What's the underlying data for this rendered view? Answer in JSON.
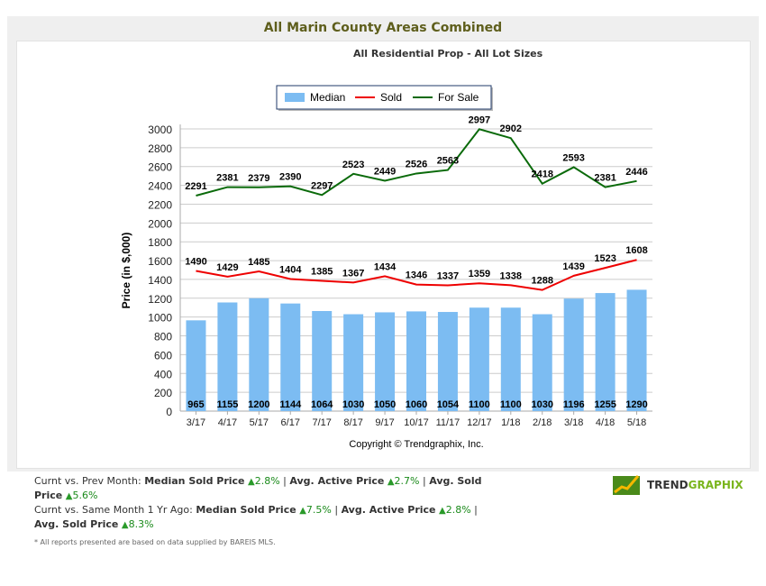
{
  "header": {
    "title": "All Marin County Areas Combined",
    "subtitle": "All Residential Prop - All Lot Sizes"
  },
  "chart_data": {
    "type": "bar+line",
    "categories": [
      "3/17",
      "4/17",
      "5/17",
      "6/17",
      "7/17",
      "8/17",
      "9/17",
      "10/17",
      "11/17",
      "12/17",
      "1/18",
      "2/18",
      "3/18",
      "4/18",
      "5/18"
    ],
    "series": [
      {
        "name": "Median",
        "type": "bar",
        "color": "#7cbcf2",
        "values": [
          965,
          1155,
          1200,
          1144,
          1064,
          1030,
          1050,
          1060,
          1054,
          1100,
          1100,
          1030,
          1196,
          1255,
          1290
        ]
      },
      {
        "name": "Sold",
        "type": "line",
        "color": "#ee0000",
        "values": [
          1490,
          1429,
          1485,
          1404,
          1385,
          1367,
          1434,
          1346,
          1337,
          1359,
          1338,
          1288,
          1439,
          1523,
          1608
        ]
      },
      {
        "name": "For Sale",
        "type": "line",
        "color": "#0a6a0a",
        "values": [
          2291,
          2381,
          2379,
          2390,
          2297,
          2523,
          2449,
          2526,
          2563,
          2997,
          2902,
          2418,
          2593,
          2381,
          2446
        ]
      }
    ],
    "ylabel": "Price (in $,000)",
    "xlabel": "Copyright © Trendgraphix, Inc.",
    "ylim": [
      0,
      3000
    ],
    "yticks": [
      0,
      200,
      400,
      600,
      800,
      1000,
      1200,
      1400,
      1600,
      1800,
      2000,
      2200,
      2400,
      2600,
      2800,
      3000
    ],
    "grid": true,
    "legend": "top-center"
  },
  "stats": {
    "prev_label": "Curnt vs. Prev Month:",
    "year_label": "Curnt vs. Same Month 1 Yr Ago:",
    "median_label": "Median Sold Price",
    "active_label": "Avg. Active Price",
    "sold_label": "Avg. Sold Price",
    "prev": {
      "median": "2.8%",
      "active": "2.7%",
      "sold": "5.6%"
    },
    "year": {
      "median": "7.5%",
      "active": "2.8%",
      "sold": "8.3%"
    },
    "sep": "|"
  },
  "note": "* All reports presented are based on data supplied by BAREIS MLS.",
  "logo": {
    "part1": "TREND",
    "part2": "GRAPHIX"
  }
}
